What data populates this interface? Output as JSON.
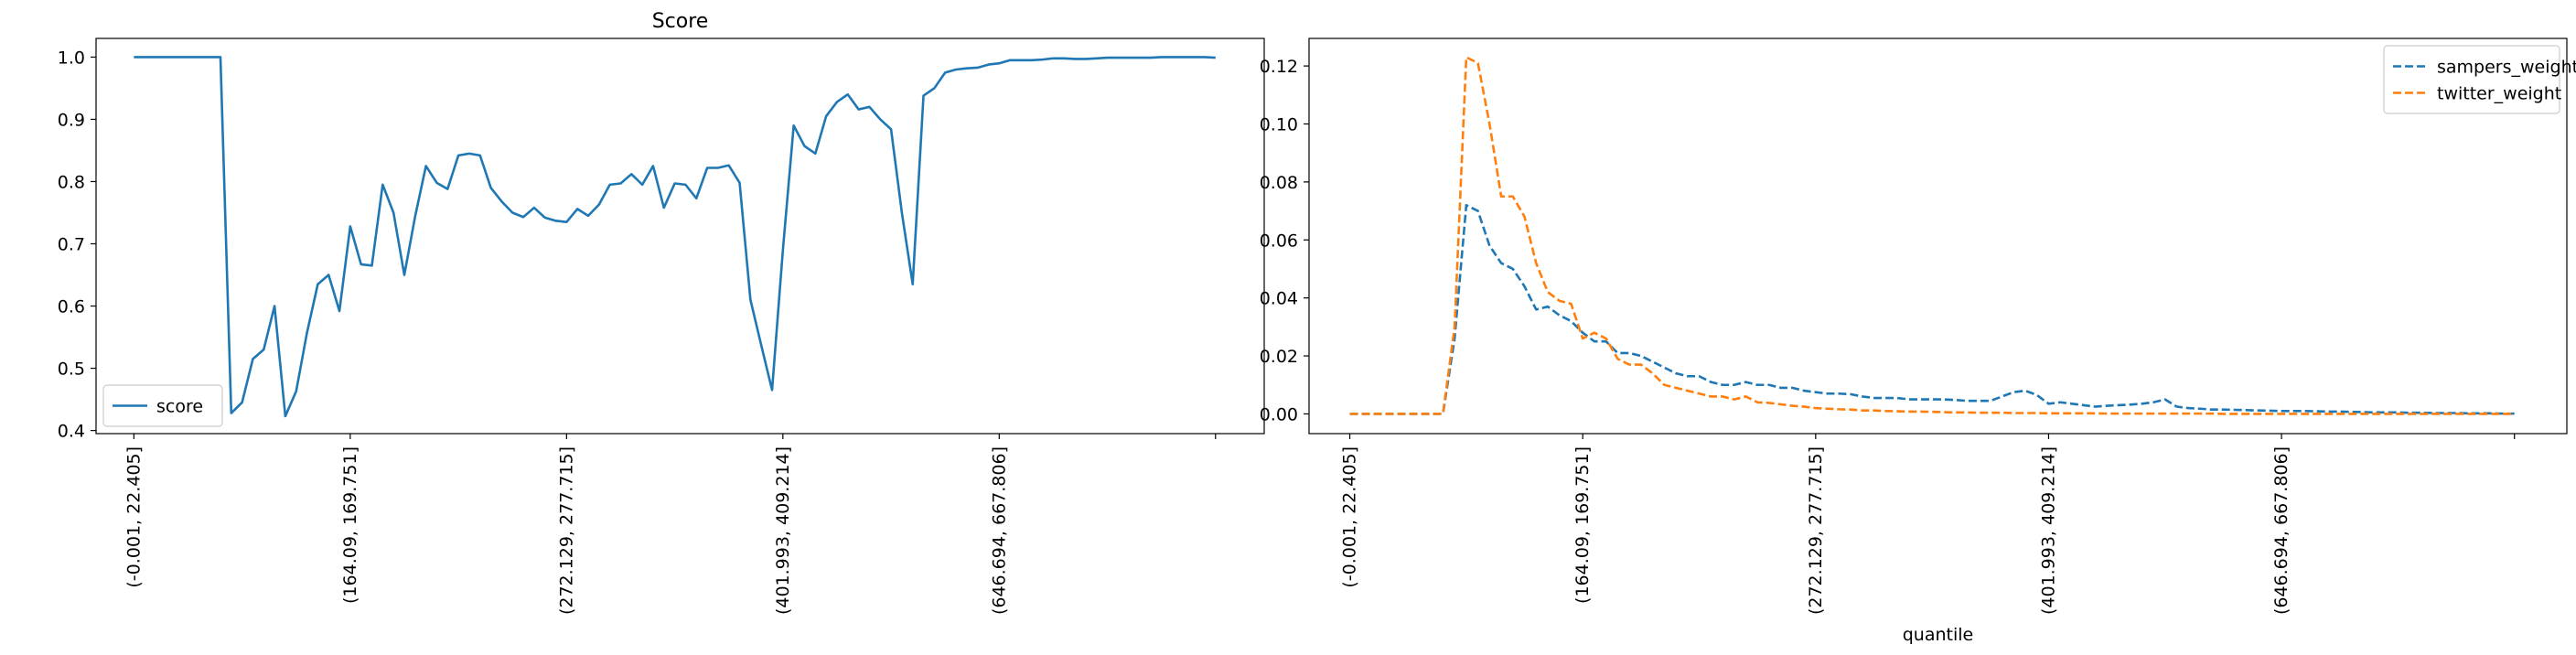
{
  "chart_data": [
    {
      "type": "line",
      "title": "Score",
      "xlabel": "",
      "ylabel": "",
      "ylim": [
        0.395,
        1.03
      ],
      "yticks": [
        0.4,
        0.5,
        0.6,
        0.7,
        0.8,
        0.9,
        1.0
      ],
      "ytick_labels": [
        "0.4",
        "0.5",
        "0.6",
        "0.7",
        "0.8",
        "0.9",
        "1.0"
      ],
      "xlim": [
        -3.5,
        104.5
      ],
      "xticks": [
        0,
        20,
        40,
        60,
        80,
        100
      ],
      "xtick_labels": [
        "(-0.001, 22.405]",
        "(164.09, 169.751]",
        "(272.129, 277.715]",
        "(401.993, 409.214]",
        "(646.694, 667.806]",
        ""
      ],
      "grid": false,
      "legend": "lower-left",
      "series": [
        {
          "name": "score",
          "color": "#1f77b4",
          "dash": "solid",
          "x": [
            0,
            1,
            2,
            3,
            4,
            5,
            6,
            7,
            8,
            9,
            10,
            11,
            12,
            13,
            14,
            15,
            16,
            17,
            18,
            19,
            20,
            21,
            22,
            23,
            24,
            25,
            26,
            27,
            28,
            29,
            30,
            31,
            32,
            33,
            34,
            35,
            36,
            37,
            38,
            39,
            40,
            41,
            42,
            43,
            44,
            45,
            46,
            47,
            48,
            49,
            50,
            51,
            52,
            53,
            54,
            55,
            56,
            57,
            58,
            59,
            60,
            61,
            62,
            63,
            64,
            65,
            66,
            67,
            68,
            69,
            70,
            71,
            72,
            73,
            74,
            75,
            76,
            77,
            78,
            79,
            80,
            81,
            82,
            83,
            84,
            85,
            86,
            87,
            88,
            89,
            90,
            91,
            92,
            93,
            94,
            95,
            96,
            97,
            98,
            99,
            100
          ],
          "values": [
            1.0,
            1.0,
            1.0,
            1.0,
            1.0,
            1.0,
            1.0,
            1.0,
            1.0,
            0.428,
            0.445,
            0.515,
            0.53,
            0.6,
            0.423,
            0.463,
            0.557,
            0.635,
            0.65,
            0.592,
            0.728,
            0.667,
            0.665,
            0.795,
            0.75,
            0.65,
            0.744,
            0.825,
            0.798,
            0.788,
            0.842,
            0.845,
            0.842,
            0.79,
            0.768,
            0.75,
            0.743,
            0.758,
            0.742,
            0.737,
            0.735,
            0.756,
            0.745,
            0.763,
            0.795,
            0.797,
            0.812,
            0.795,
            0.825,
            0.758,
            0.797,
            0.795,
            0.773,
            0.822,
            0.822,
            0.826,
            0.798,
            0.61,
            0.537,
            0.465,
            0.69,
            0.89,
            0.857,
            0.845,
            0.905,
            0.928,
            0.94,
            0.916,
            0.92,
            0.9,
            0.884,
            0.75,
            0.635,
            0.938,
            0.95,
            0.975,
            0.98,
            0.982,
            0.983,
            0.988,
            0.99,
            0.995,
            0.995,
            0.995,
            0.996,
            0.998,
            0.998,
            0.997,
            0.997,
            0.998,
            0.999,
            0.999,
            0.999,
            0.999,
            0.999,
            1.0,
            1.0,
            1.0,
            1.0,
            1.0,
            0.999
          ]
        }
      ]
    },
    {
      "type": "line",
      "title": "",
      "xlabel": "quantile",
      "ylabel": "",
      "ylim": [
        -0.0068,
        0.1295
      ],
      "yticks": [
        0.0,
        0.02,
        0.04,
        0.06,
        0.08,
        0.1,
        0.12
      ],
      "ytick_labels": [
        "0.00",
        "0.02",
        "0.04",
        "0.06",
        "0.08",
        "0.10",
        "0.12"
      ],
      "xlim": [
        -3.5,
        104.5
      ],
      "xticks": [
        0,
        20,
        40,
        60,
        80,
        100
      ],
      "xtick_labels": [
        "(-0.001, 22.405]",
        "(164.09, 169.751]",
        "(272.129, 277.715]",
        "(401.993, 409.214]",
        "(646.694, 667.806]",
        ""
      ],
      "grid": false,
      "legend": "top-right",
      "series": [
        {
          "name": "sampers_weight",
          "color": "#1f77b4",
          "dash": "dashed",
          "x": [
            0,
            1,
            2,
            3,
            4,
            5,
            6,
            7,
            8,
            9,
            10,
            11,
            12,
            13,
            14,
            15,
            16,
            17,
            18,
            19,
            20,
            21,
            22,
            23,
            24,
            25,
            26,
            27,
            28,
            29,
            30,
            31,
            32,
            33,
            34,
            35,
            36,
            37,
            38,
            39,
            40,
            41,
            42,
            43,
            44,
            45,
            46,
            47,
            48,
            49,
            50,
            51,
            52,
            53,
            54,
            55,
            56,
            57,
            58,
            59,
            60,
            61,
            62,
            63,
            64,
            65,
            66,
            67,
            68,
            69,
            70,
            71,
            72,
            73,
            74,
            75,
            76,
            77,
            78,
            79,
            80,
            81,
            82,
            83,
            84,
            85,
            86,
            87,
            88,
            89,
            90,
            91,
            92,
            93,
            94,
            95,
            96,
            97,
            98,
            99,
            100
          ],
          "values": [
            0,
            0,
            0,
            0,
            0,
            0,
            0,
            0,
            0,
            0.026,
            0.072,
            0.07,
            0.058,
            0.052,
            0.05,
            0.044,
            0.036,
            0.037,
            0.034,
            0.032,
            0.028,
            0.025,
            0.025,
            0.021,
            0.021,
            0.02,
            0.018,
            0.016,
            0.014,
            0.013,
            0.013,
            0.011,
            0.01,
            0.01,
            0.011,
            0.01,
            0.01,
            0.009,
            0.009,
            0.008,
            0.0075,
            0.007,
            0.007,
            0.0068,
            0.006,
            0.0055,
            0.0055,
            0.0055,
            0.005,
            0.005,
            0.005,
            0.005,
            0.0048,
            0.0045,
            0.0045,
            0.0045,
            0.006,
            0.0075,
            0.008,
            0.0065,
            0.0035,
            0.004,
            0.0035,
            0.003,
            0.0025,
            0.0028,
            0.003,
            0.0032,
            0.0035,
            0.004,
            0.005,
            0.0025,
            0.002,
            0.0018,
            0.0015,
            0.0015,
            0.0014,
            0.0013,
            0.0012,
            0.0011,
            0.001,
            0.001,
            0.001,
            0.0009,
            0.0008,
            0.0008,
            0.0007,
            0.0006,
            0.0005,
            0.0005,
            0.0005,
            0.0004,
            0.0004,
            0.0003,
            0.0003,
            0.0003,
            0.0002,
            0.0002,
            0.0002,
            0.0001,
            0.0001
          ]
        },
        {
          "name": "twitter_weight",
          "color": "#ff7f0e",
          "dash": "dashed",
          "x": [
            0,
            1,
            2,
            3,
            4,
            5,
            6,
            7,
            8,
            9,
            10,
            11,
            12,
            13,
            14,
            15,
            16,
            17,
            18,
            19,
            20,
            21,
            22,
            23,
            24,
            25,
            26,
            27,
            28,
            29,
            30,
            31,
            32,
            33,
            34,
            35,
            36,
            37,
            38,
            39,
            40,
            41,
            42,
            43,
            44,
            45,
            46,
            47,
            48,
            49,
            50,
            51,
            52,
            53,
            54,
            55,
            56,
            57,
            58,
            59,
            60,
            61,
            62,
            63,
            64,
            65,
            66,
            67,
            68,
            69,
            70,
            71,
            72,
            73,
            74,
            75,
            76,
            77,
            78,
            79,
            80,
            81,
            82,
            83,
            84,
            85,
            86,
            87,
            88,
            89,
            90,
            91,
            92,
            93,
            94,
            95,
            96,
            97,
            98,
            99,
            100
          ],
          "values": [
            0,
            0,
            0,
            0,
            0,
            0,
            0,
            0,
            0,
            0.03,
            0.123,
            0.121,
            0.1,
            0.075,
            0.075,
            0.068,
            0.052,
            0.042,
            0.039,
            0.038,
            0.026,
            0.028,
            0.026,
            0.019,
            0.017,
            0.017,
            0.014,
            0.01,
            0.009,
            0.008,
            0.007,
            0.006,
            0.006,
            0.005,
            0.006,
            0.004,
            0.0038,
            0.0033,
            0.0028,
            0.0025,
            0.002,
            0.0018,
            0.0016,
            0.0015,
            0.0012,
            0.0012,
            0.001,
            0.0009,
            0.0008,
            0.0008,
            0.0007,
            0.0006,
            0.0005,
            0.0005,
            0.0004,
            0.0004,
            0.0004,
            0.0003,
            0.0003,
            0.0003,
            0.0002,
            0.0002,
            0.0002,
            0.0002,
            0.0002,
            0.0001,
            0.0001,
            0.0001,
            0.0001,
            0.0001,
            0.0001,
            0.0001,
            0.0001,
            0.0001,
            0.0001,
            0,
            0,
            0,
            0,
            0,
            0,
            0,
            0,
            0,
            0,
            0,
            0,
            0,
            0,
            0,
            0,
            0,
            0,
            0,
            0,
            0,
            0,
            0,
            0,
            0,
            0
          ]
        }
      ]
    }
  ]
}
